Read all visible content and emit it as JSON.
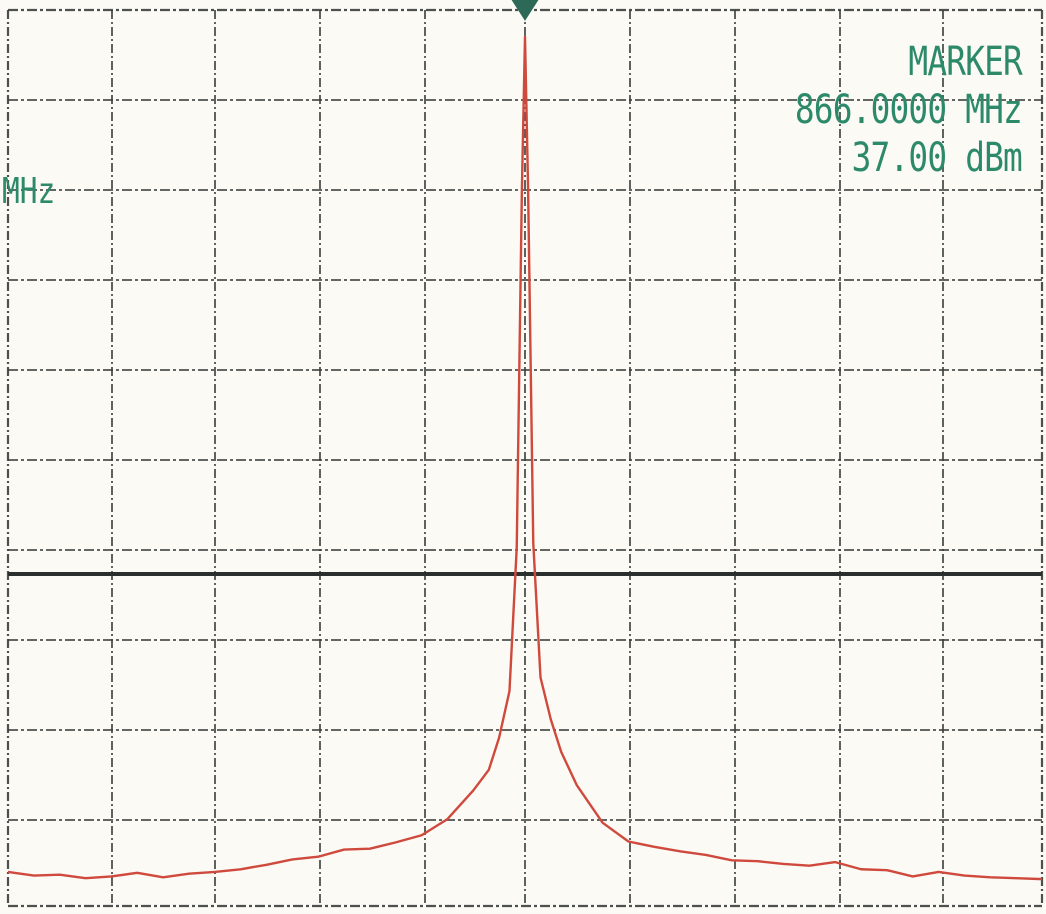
{
  "chart_data": {
    "type": "line",
    "title": "",
    "xlabel": "",
    "ylabel": "",
    "grid": true,
    "marker": {
      "title": "MARKER",
      "frequency": "866.0000 MHz",
      "level": "37.00 dBm",
      "frequency_value": 866.0,
      "level_value": 37.0,
      "unit_x": "MHz",
      "unit_y": "dBm"
    },
    "left_label": "MHz",
    "grid_divisions": {
      "horizontal": 10,
      "vertical": 9
    },
    "reference_line_value": 0.5,
    "trace": {
      "color": "#cf4a3d",
      "x": [
        -5.0,
        -4.75,
        -4.5,
        -4.25,
        -4.0,
        -3.75,
        -3.5,
        -3.25,
        -3.0,
        -2.75,
        -2.5,
        -2.25,
        -2.0,
        -1.75,
        -1.5,
        -1.25,
        -1.0,
        -0.75,
        -0.5,
        -0.35,
        -0.25,
        -0.15,
        -0.08,
        -0.03,
        0.0,
        0.03,
        0.08,
        0.15,
        0.25,
        0.35,
        0.5,
        0.75,
        1.0,
        1.25,
        1.5,
        1.75,
        2.0,
        2.25,
        2.5,
        2.75,
        3.0,
        3.25,
        3.5,
        3.75,
        4.0,
        4.25,
        4.5,
        4.75,
        5.0
      ],
      "y": [
        -56.2,
        -56.6,
        -56.5,
        -56.9,
        -56.7,
        -56.3,
        -56.8,
        -56.4,
        -56.2,
        -55.9,
        -55.4,
        -54.8,
        -54.5,
        -53.7,
        -53.6,
        -52.9,
        -52.1,
        -50.3,
        -47.1,
        -44.8,
        -41.2,
        -36.0,
        -20.0,
        20.0,
        37.0,
        20.0,
        -19.5,
        -34.5,
        -39.2,
        -42.8,
        -46.5,
        -50.7,
        -52.8,
        -53.4,
        -53.9,
        -54.3,
        -54.9,
        -55.0,
        -55.3,
        -55.5,
        -55.1,
        -55.9,
        -56.0,
        -56.7,
        -56.2,
        -56.6,
        -56.8,
        -56.9,
        -57.0
      ]
    }
  }
}
